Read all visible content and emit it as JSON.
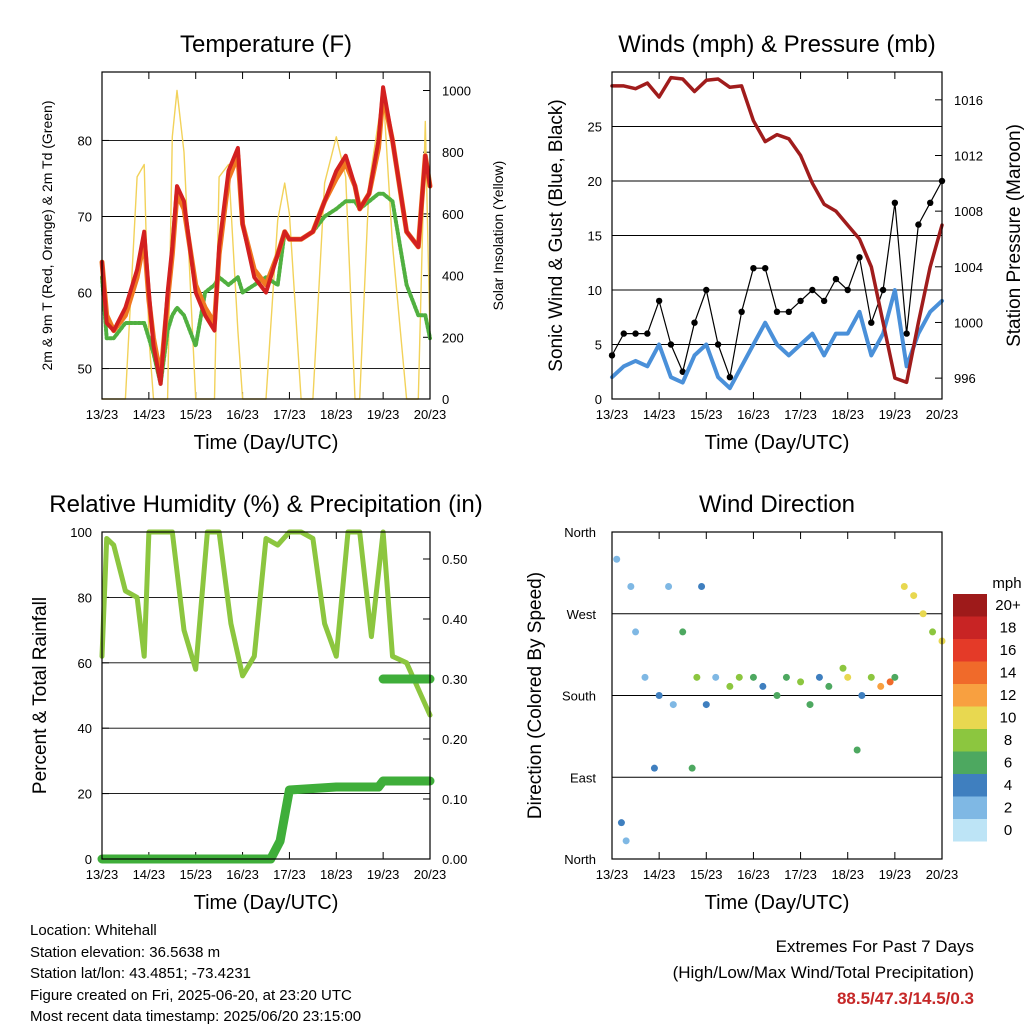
{
  "x_ticks": [
    "13/23",
    "14/23",
    "15/23",
    "16/23",
    "17/23",
    "18/23",
    "19/23",
    "20/23"
  ],
  "xlabel": "Time (Day/UTC)",
  "chart_data": [
    {
      "type": "line",
      "title": "Temperature (F)",
      "ylabel_left": "2m & 9m T (Red, Orange) & 2m Td (Green)",
      "ylabel_right": "Solar Insolation (Yellow)",
      "ylim_left": [
        46,
        89
      ],
      "yticks_left": [
        50,
        60,
        70,
        80
      ],
      "ylim_right": [
        0,
        1060
      ],
      "yticks_right": [
        0,
        200,
        400,
        600,
        800,
        1000
      ],
      "grid": true,
      "x": [
        0,
        0.1,
        0.25,
        0.5,
        0.75,
        0.9,
        1,
        1.1,
        1.25,
        1.4,
        1.5,
        1.6,
        1.75,
        2,
        2.2,
        2.4,
        2.5,
        2.7,
        2.9,
        3,
        3.25,
        3.5,
        3.75,
        3.9,
        4,
        4.25,
        4.5,
        4.75,
        5,
        5.2,
        5.4,
        5.5,
        5.7,
        5.9,
        6,
        6.2,
        6.5,
        6.75,
        6.9,
        7
      ],
      "series": [
        {
          "name": "2m T",
          "color": "#d32020",
          "y": [
            64,
            56,
            55,
            58,
            63,
            68,
            60,
            53,
            48,
            60,
            66,
            74,
            72,
            60,
            57,
            55,
            66,
            76,
            79,
            69,
            62,
            60,
            65,
            68,
            67,
            67,
            68,
            72,
            76,
            78,
            74,
            71,
            73,
            80,
            87,
            80,
            68,
            66,
            78,
            74
          ]
        },
        {
          "name": "9m T",
          "color": "#f07820",
          "y": [
            64,
            57,
            55,
            57,
            62,
            67,
            59,
            54,
            49,
            59,
            65,
            73,
            71,
            61,
            58,
            56,
            65,
            75,
            78,
            69,
            63,
            61,
            65,
            68,
            67,
            67,
            68,
            72,
            75,
            77,
            74,
            71,
            73,
            79,
            86,
            80,
            68,
            66,
            78,
            74
          ]
        },
        {
          "name": "2m Td",
          "color": "#50b040",
          "y": [
            62,
            54,
            54,
            56,
            56,
            56,
            54,
            52,
            48,
            55,
            57,
            58,
            57,
            53,
            60,
            61,
            62,
            61,
            62,
            60,
            61,
            62,
            61,
            68,
            67,
            67,
            68,
            70,
            71,
            72,
            72,
            71,
            72,
            73,
            73,
            72,
            61,
            57,
            57,
            54
          ]
        },
        {
          "name": "Solar",
          "color": "#f2d25a",
          "y": [
            0,
            0,
            0,
            0,
            720,
            760,
            200,
            0,
            0,
            0,
            850,
            1000,
            800,
            0,
            0,
            0,
            720,
            760,
            220,
            0,
            0,
            0,
            580,
            700,
            600,
            0,
            0,
            700,
            850,
            720,
            0,
            0,
            700,
            900,
            1000,
            500,
            0,
            0,
            900,
            200
          ]
        }
      ]
    },
    {
      "type": "line",
      "title": "Winds (mph) & Pressure (mb)",
      "ylabel_left": "Sonic Wind & Gust (Blue, Black)",
      "ylabel_right": "Station Pressure (Maroon)",
      "ylim_left": [
        0,
        30
      ],
      "yticks_left": [
        0,
        5,
        10,
        15,
        20,
        25
      ],
      "ylim_right": [
        994.5,
        1018
      ],
      "yticks_right": [
        996,
        1000,
        1004,
        1008,
        1012,
        1016
      ],
      "grid": true,
      "x": [
        0,
        0.25,
        0.5,
        0.75,
        1,
        1.25,
        1.5,
        1.75,
        2,
        2.25,
        2.5,
        2.75,
        3,
        3.25,
        3.5,
        3.75,
        4,
        4.25,
        4.5,
        4.75,
        5,
        5.25,
        5.5,
        5.75,
        6,
        6.25,
        6.5,
        6.75,
        7
      ],
      "series": [
        {
          "name": "Wind",
          "color": "#4a90d9",
          "y": [
            2,
            3,
            3.5,
            3,
            5,
            2,
            1.5,
            4,
            5,
            2,
            1,
            3,
            5,
            7,
            5,
            4,
            5,
            6,
            4,
            6,
            6,
            8,
            4,
            6,
            10,
            3,
            6,
            8,
            9
          ]
        },
        {
          "name": "Gust",
          "color": "#000000",
          "y": [
            4,
            6,
            6,
            6,
            9,
            5,
            2.5,
            7,
            10,
            5,
            2,
            8,
            12,
            12,
            8,
            8,
            9,
            10,
            9,
            11,
            10,
            13,
            7,
            10,
            18,
            6,
            16,
            18,
            20
          ]
        },
        {
          "name": "Pressure",
          "color": "#a01c1c",
          "y": [
            1017,
            1017,
            1016.8,
            1017.2,
            1016.2,
            1017.6,
            1017.5,
            1016.6,
            1017.4,
            1017.5,
            1016.9,
            1017,
            1014.5,
            1013,
            1013.5,
            1013.2,
            1012,
            1010,
            1008.5,
            1008,
            1007,
            1006,
            1004,
            1000,
            996,
            995.7,
            1000,
            1004,
            1007
          ]
        }
      ]
    },
    {
      "type": "line",
      "title": "Relative Humidity (%) & Precipitation (in)",
      "ylabel_left": "Percent & Total Rainfall",
      "ylim_left": [
        0,
        100
      ],
      "yticks_left": [
        0,
        20,
        40,
        60,
        80,
        100
      ],
      "ylim_right": [
        0,
        0.545
      ],
      "yticks_right": [
        "0.00",
        "0.10",
        "0.20",
        "0.30",
        "0.40",
        "0.50"
      ],
      "grid": true,
      "x_rh": [
        0,
        0.1,
        0.25,
        0.5,
        0.75,
        0.9,
        1,
        1.25,
        1.5,
        1.75,
        2,
        2.25,
        2.5,
        2.75,
        3,
        3.25,
        3.5,
        3.75,
        4,
        4.25,
        4.5,
        4.75,
        5,
        5.25,
        5.5,
        5.75,
        6,
        6.2,
        6.5,
        6.75,
        7
      ],
      "series": [
        {
          "name": "RH",
          "color": "#8cc63f",
          "x_key": "x_rh",
          "y": [
            62,
            98,
            96,
            82,
            80,
            62,
            100,
            100,
            100,
            70,
            58,
            100,
            100,
            72,
            56,
            62,
            98,
            96,
            100,
            100,
            98,
            72,
            62,
            100,
            100,
            68,
            100,
            62,
            60,
            52,
            44
          ]
        },
        {
          "name": "Rainfall",
          "color": "#3fae3a",
          "x": [
            0,
            3,
            3.6,
            3.8,
            4,
            5,
            5.9,
            6,
            6.5,
            7
          ],
          "y": [
            0,
            0,
            0,
            0.03,
            0.115,
            0.12,
            0.12,
            0.13,
            0.13,
            0.13
          ]
        },
        {
          "name": "Rainfall-right",
          "color": "#3fae3a",
          "x": [
            6,
            6.5,
            7
          ],
          "y": [
            0.3,
            0.3,
            0.3
          ]
        }
      ]
    },
    {
      "type": "scatter",
      "title": "Wind Direction",
      "ylabel_left": "Direction (Colored By Speed)",
      "yticks_left": [
        "North",
        "East",
        "South",
        "West",
        "North"
      ],
      "grid": true,
      "x": [
        0.1,
        0.2,
        0.3,
        0.4,
        0.5,
        0.7,
        0.9,
        1,
        1.2,
        1.3,
        1.5,
        1.7,
        1.8,
        1.9,
        2,
        2.2,
        2.5,
        2.7,
        3,
        3.2,
        3.5,
        3.7,
        4,
        4.2,
        4.4,
        4.6,
        4.9,
        5,
        5.2,
        5.3,
        5.5,
        5.7,
        5.9,
        6,
        6.2,
        6.4,
        6.6,
        6.8,
        7
      ],
      "y": [
        330,
        40,
        20,
        300,
        250,
        200,
        100,
        180,
        300,
        170,
        250,
        100,
        200,
        300,
        170,
        200,
        190,
        200,
        200,
        190,
        180,
        200,
        195,
        170,
        200,
        190,
        210,
        200,
        120,
        180,
        200,
        190,
        195,
        200,
        300,
        290,
        270,
        250,
        240
      ],
      "speed": [
        2,
        3,
        1,
        2,
        1,
        2,
        4,
        3,
        1,
        2,
        5,
        6,
        8,
        4,
        3,
        2,
        7,
        8,
        6,
        4,
        5,
        6,
        7,
        5,
        4,
        6,
        8,
        9,
        5,
        4,
        8,
        12,
        14,
        6,
        10,
        10,
        9,
        8,
        10
      ],
      "colorbar": {
        "title": "mph",
        "labels": [
          "20+",
          "18",
          "16",
          "14",
          "12",
          "10",
          "8",
          "6",
          "4",
          "2",
          "0"
        ],
        "colors": [
          "#9e1a1a",
          "#c82424",
          "#e43a28",
          "#f06a2a",
          "#f8a040",
          "#e8d850",
          "#8cc63f",
          "#4da860",
          "#3f7fbf",
          "#7fb8e4",
          "#bde4f6"
        ]
      }
    }
  ],
  "info": {
    "location": "Location: Whitehall",
    "elevation": "Station elevation: 36.5638 m",
    "latlon": "Station lat/lon: 43.4851; -73.4231",
    "created": "Figure created on Fri, 2025-06-20, at 23:20 UTC",
    "timestamp": "Most recent data timestamp: 2025/06/20 23:15:00"
  },
  "extremes": {
    "line1": "Extremes For Past 7 Days",
    "line2": "(High/Low/Max Wind/Total Precipitation)",
    "values": "88.5/47.3/14.5/0.3"
  }
}
